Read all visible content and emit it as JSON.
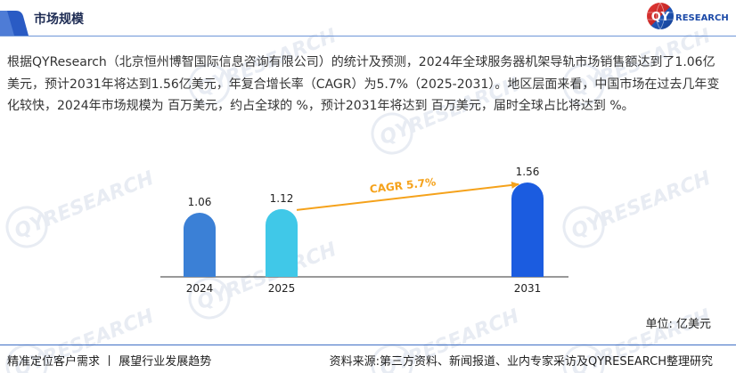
{
  "header": {
    "title": "市场规模"
  },
  "logo": {
    "qy": "QY",
    "research": "RESEARCH"
  },
  "summary": "根据QYResearch（北京恒州博智国际信息咨询有限公司）的统计及预测，2024年全球服务器机架导轨市场销售额达到了1.06亿美元，预计2031年将达到1.56亿美元，年复合增长率（CAGR）为5.7%（2025-2031）。地区层面来看，中国市场在过去几年变化较快，2024年市场规模为 百万美元，约占全球的 %，预计2031年将达到 百万美元，届时全球占比将达到 %。",
  "chart_data": {
    "type": "bar",
    "categories": [
      "2024",
      "2025",
      "2031"
    ],
    "values": [
      1.06,
      1.12,
      1.56
    ],
    "colors": [
      "#3b80d6",
      "#40c8e8",
      "#1b5ce0"
    ],
    "annotation": {
      "text": "CAGR 5.7%",
      "from": "2025",
      "to": "2031",
      "color": "#f5a21b"
    },
    "unit_label": "单位: 亿美元",
    "grid": false
  },
  "footer": {
    "left": "精准定位客户需求 丨 展望行业发展趋势",
    "right": "资料来源:第三方资料、新闻报道、业内专家采访及QYRESEARCH整理研究"
  },
  "watermark_text": "QYRESEARCH",
  "theme": {
    "accent": "#2a5bc4",
    "rule_line": "#6e96d8",
    "footer_line": "#3f6fc4"
  }
}
